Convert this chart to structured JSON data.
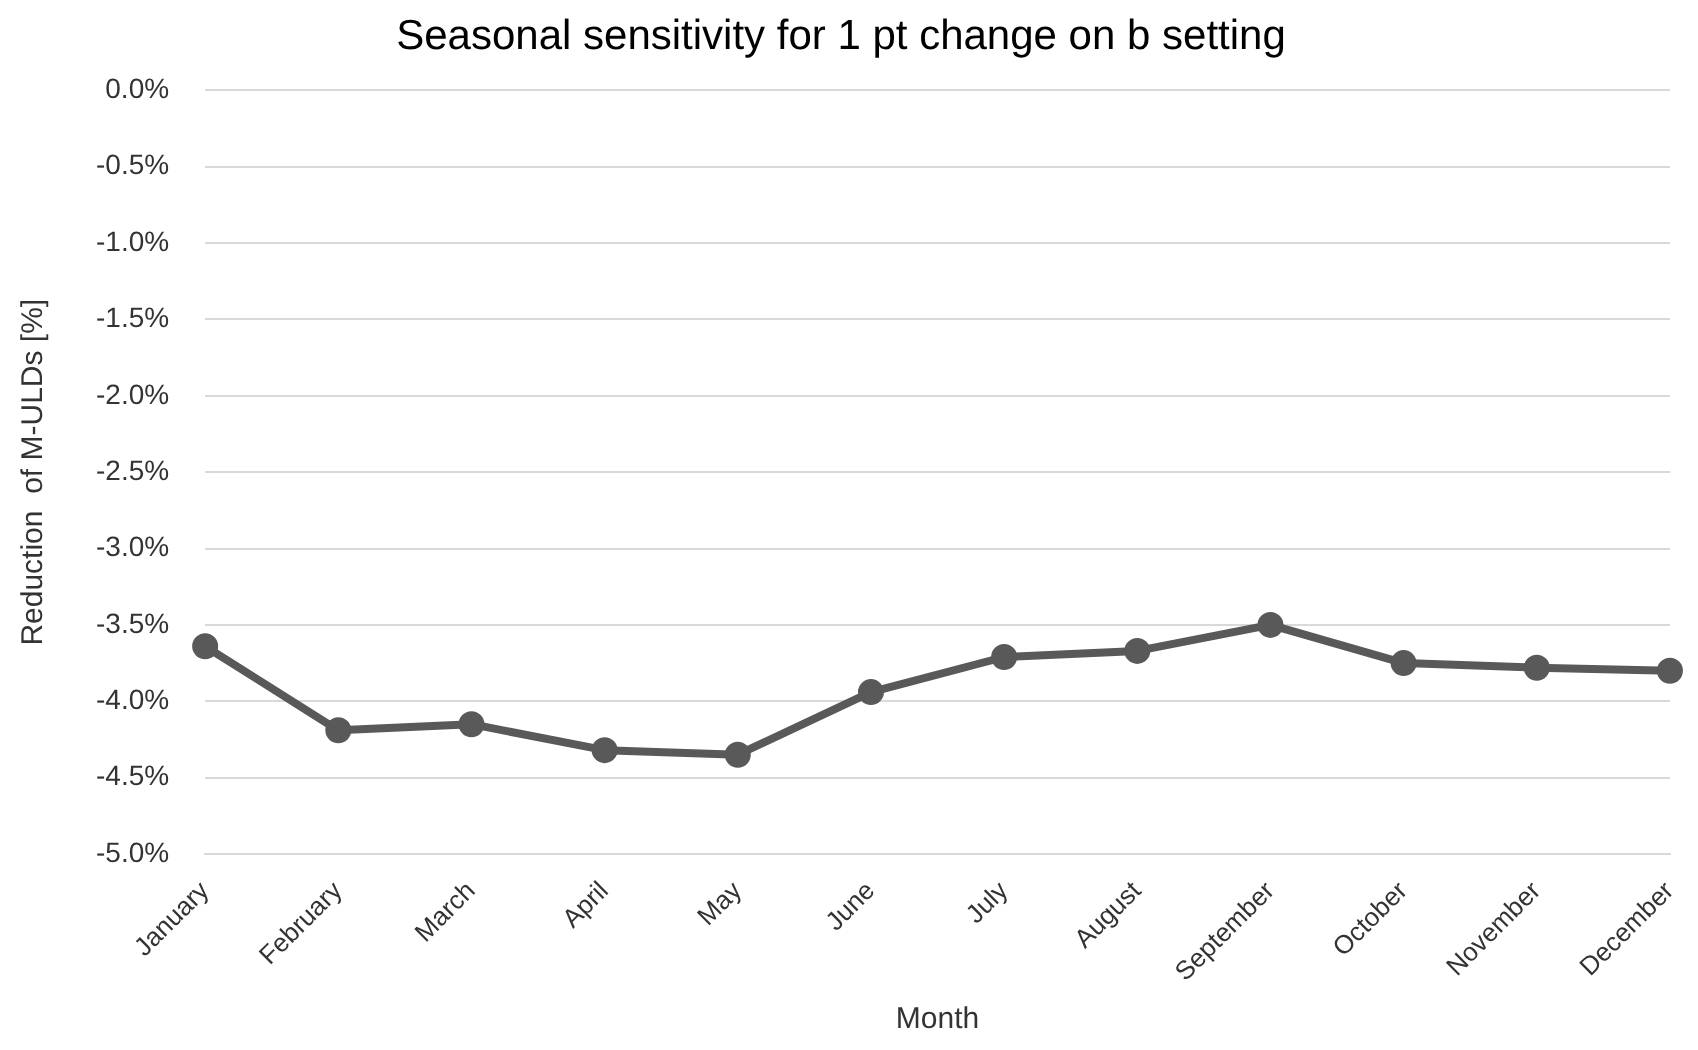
{
  "chart_data": {
    "type": "line",
    "title": "Seasonal sensitivity for 1 pt change on b setting",
    "xlabel": "Month",
    "ylabel": "Reduction  of M-ULDs [%]",
    "categories": [
      "January",
      "February",
      "March",
      "April",
      "May",
      "June",
      "July",
      "August",
      "September",
      "October",
      "November",
      "December"
    ],
    "series": [
      {
        "color": "#595959",
        "values": [
          -3.64,
          -4.19,
          -4.15,
          -4.32,
          -4.35,
          -3.94,
          -3.71,
          -3.67,
          -3.5,
          -3.75,
          -3.78,
          -3.8
        ]
      }
    ],
    "ylim": [
      -5,
      0
    ],
    "yticks": [
      {
        "value": 0,
        "label": "0.0%"
      },
      {
        "value": -0.5,
        "label": "-0.5%"
      },
      {
        "value": -1,
        "label": "-1.0%"
      },
      {
        "value": -1.5,
        "label": "-1.5%"
      },
      {
        "value": -2,
        "label": "-2.0%"
      },
      {
        "value": -2.5,
        "label": "-2.5%"
      },
      {
        "value": -3,
        "label": "-3.0%"
      },
      {
        "value": -3.5,
        "label": "-3.5%"
      },
      {
        "value": -4,
        "label": "-4.0%"
      },
      {
        "value": -4.5,
        "label": "-4.5%"
      },
      {
        "value": -5,
        "label": "-5.0%"
      }
    ],
    "grid": "y",
    "legend": false,
    "marker": "circle",
    "line_style": "solid"
  }
}
